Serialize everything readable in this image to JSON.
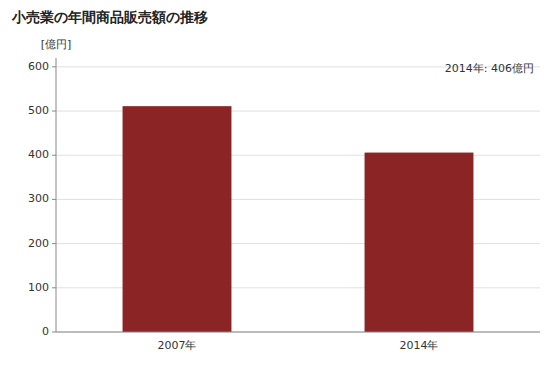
{
  "chart_data": {
    "type": "bar",
    "title": "小売業の年間商品販売額の推移",
    "ylabel": "[億円]",
    "categories": [
      "2007年",
      "2014年"
    ],
    "values": [
      511,
      406
    ],
    "color": "#8B2525",
    "ylim": [
      0,
      620
    ],
    "yticks": [
      0,
      100,
      200,
      300,
      400,
      500,
      600
    ],
    "annotation": "2014年: 406億円",
    "grid": true
  }
}
